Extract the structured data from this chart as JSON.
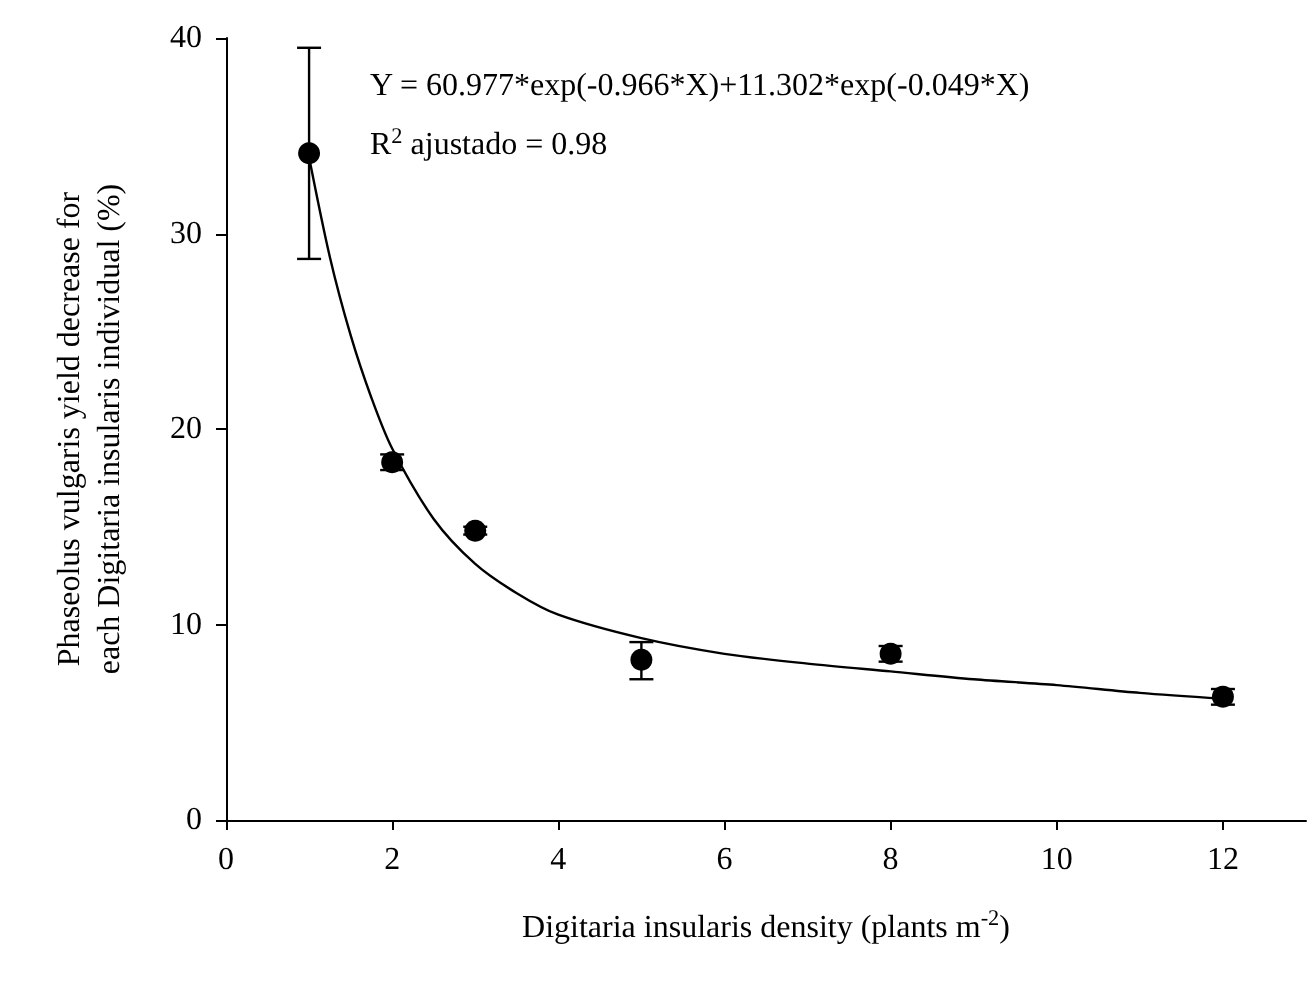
{
  "chart_data": {
    "type": "scatter",
    "xlabel": "Digitaria insularis density (plants m$^{-2}$)",
    "ylabel": "Phaseolus vulgaris yield decrease for\neach Digitaria insularis individual (%)",
    "annotations": [
      "Y = 60.977*exp(-0.966*X)+11.302*exp(-0.049*X)",
      "R$^{2}$ ajustado = 0.98"
    ],
    "series": [
      {
        "color": "#000000",
        "x": [
          1,
          2,
          3,
          5,
          8,
          12
        ],
        "values": [
          34.1,
          18.3,
          14.8,
          8.2,
          8.5,
          6.3
        ],
        "errors": [
          [
            28.7,
            39.5
          ],
          0.4,
          0.2,
          [
            7.2,
            9.1
          ],
          0.4,
          0.4
        ]
      },
      {
        "type": "line",
        "color": "#000000",
        "marker": "none",
        "x": [
          1,
          1.25,
          1.5,
          1.75,
          2,
          2.5,
          3,
          3.5,
          4,
          5,
          6,
          7,
          8,
          9,
          10,
          11,
          12
        ],
        "values": [
          33.9,
          28.8,
          24.8,
          21.6,
          19.0,
          15.4,
          13.1,
          11.6,
          10.5,
          9.3,
          8.5,
          8.0,
          7.6,
          7.2,
          6.9,
          6.5,
          6.2
        ]
      }
    ],
    "marker": "circle",
    "line_style": "solid",
    "xlim": [
      0,
      13
    ],
    "xticks": [
      0,
      2,
      4,
      6,
      8,
      10,
      12
    ],
    "ylim": [
      0,
      40
    ],
    "yticks": [
      0,
      10,
      20,
      30,
      40
    ],
    "grid": false
  }
}
